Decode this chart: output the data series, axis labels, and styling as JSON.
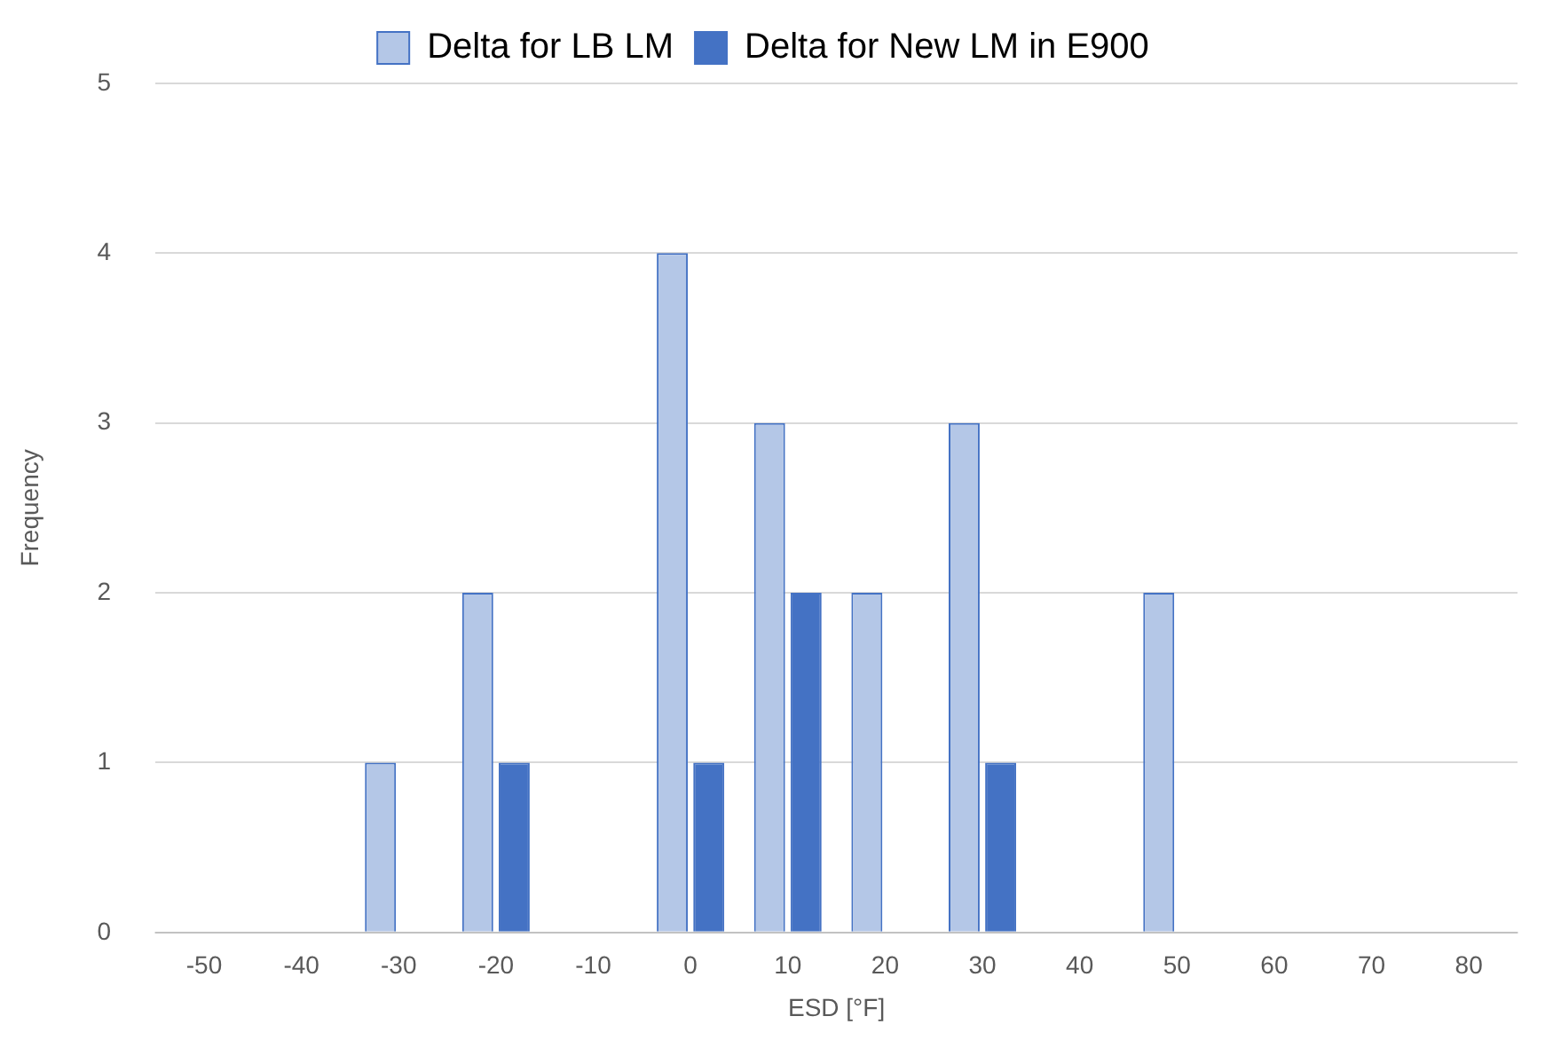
{
  "chart_data": {
    "type": "bar",
    "xlabel": "ESD [°F]",
    "ylabel": "Frequency",
    "categories": [
      "-50",
      "-40",
      "-30",
      "-20",
      "-10",
      "0",
      "10",
      "20",
      "30",
      "40",
      "50",
      "60",
      "70",
      "80"
    ],
    "series": [
      {
        "name": "Delta for LB LM",
        "color": "#b4c7e7",
        "values": [
          0,
          0,
          1,
          2,
          0,
          4,
          3,
          2,
          3,
          0,
          2,
          0,
          0,
          0
        ]
      },
      {
        "name": "Delta for New LM in E900",
        "color": "#4472c4",
        "values": [
          0,
          0,
          0,
          1,
          0,
          1,
          2,
          0,
          1,
          0,
          0,
          0,
          0,
          0
        ]
      }
    ],
    "ylim": [
      0,
      5
    ],
    "yticks": [
      0,
      1,
      2,
      3,
      4,
      5
    ],
    "grid": "y",
    "legend": "top"
  }
}
